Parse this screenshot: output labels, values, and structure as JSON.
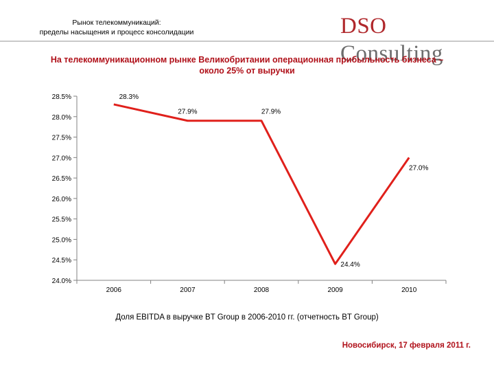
{
  "header": {
    "title_line1": "Рынок телекоммуникаций:",
    "title_line2": "пределы насыщения и процесс консолидации",
    "logo_part1": "DSO",
    "logo_part2": " Consulting"
  },
  "slide_title_line1": "На телекоммуникационном рынке Великобритании операционная прибыльность бизнеса –",
  "slide_title_line2": "около 25% от выручки",
  "chart_data": {
    "type": "line",
    "categories": [
      "2006",
      "2007",
      "2008",
      "2009",
      "2010"
    ],
    "series": [
      {
        "name": "Доля EBITDA в выручке BT Group",
        "values": [
          28.3,
          27.9,
          27.9,
          24.4,
          27.0
        ]
      }
    ],
    "value_labels": [
      "28.3%",
      "27.9%",
      "27.9%",
      "24.4%",
      "27.0%"
    ],
    "ylim": [
      24.0,
      28.5
    ],
    "yticks": [
      "24.0%",
      "24.5%",
      "25.0%",
      "25.5%",
      "26.0%",
      "26.5%",
      "27.0%",
      "27.5%",
      "28.0%",
      "28.5%"
    ],
    "line_color": "#e0201b",
    "grid": false,
    "title": "",
    "xlabel": "",
    "ylabel": ""
  },
  "caption": "Доля EBITDA в выручке BT Group в 2006-2010 гг. (отчетность BT Group)",
  "footer": "Новосибирск, 17 февраля 2011 г."
}
